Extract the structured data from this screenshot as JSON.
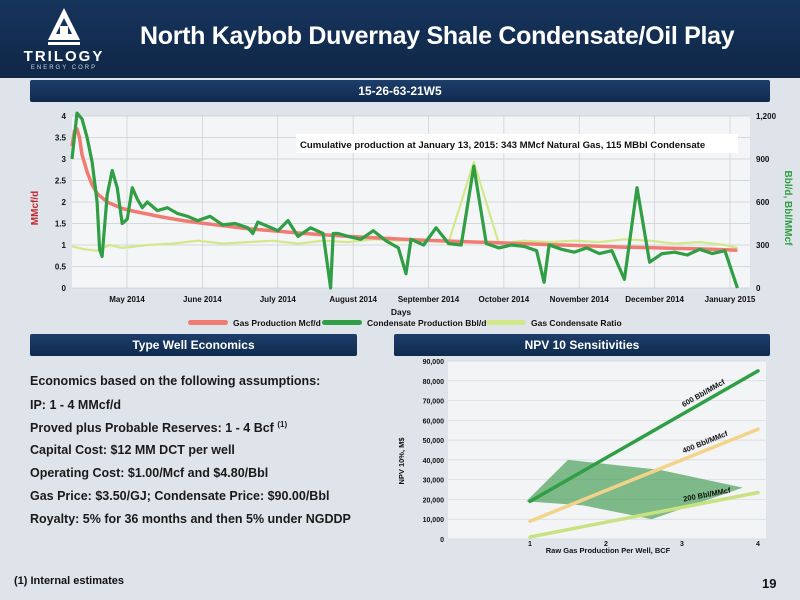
{
  "header": {
    "title": "North Kaybob Duvernay Shale Condensate/Oil Play",
    "logo_word": "TRILOGY",
    "logo_sub": "ENERGY CORP"
  },
  "well_bar": "15-26-63-21W5",
  "type_well_bar": "Type Well Economics",
  "npv_bar": "NPV 10 Sensitivities",
  "economics": {
    "intro": "Economics based on the following assumptions:",
    "items": [
      "IP: 1 - 4 MMcf/d",
      "Proved plus Probable Reserves: 1 - 4 Bcf",
      "Capital Cost: $12 MM DCT per well",
      "Operating Cost: $1.00/Mcf and $4.80/Bbl",
      "Gas Price: $3.50/GJ; Condensate Price: $90.00/Bbl",
      "Royalty: 5% for 36 months and then 5% under NGDDP"
    ],
    "reserves_note": "(1)"
  },
  "footnote": "(1) Internal estimates",
  "page_number": "19",
  "chart_data": [
    {
      "type": "line",
      "annotation": "Cumulative production at January 13, 2015: 343 MMcf Natural Gas, 115 MBbl Condensate",
      "xlabel": "Days",
      "ylabel_left": "MMcf/d",
      "ylabel_right": "Bbl/d, Bbl/MMcf",
      "x_ticks": [
        "May 2014",
        "June 2014",
        "July 2014",
        "August 2014",
        "September 2014",
        "October 2014",
        "November 2014",
        "December 2014",
        "January 2015"
      ],
      "y_left_ticks": [
        "0",
        "0.5",
        "1",
        "1.5",
        "2",
        "2.5",
        "3",
        "3.5",
        "4"
      ],
      "y_right_ticks": [
        "0",
        "300",
        "600",
        "900",
        "1,200"
      ],
      "ylim_left": [
        0,
        4
      ],
      "ylim_right": [
        0,
        1200
      ],
      "x_range_days": [
        0,
        270
      ],
      "colors": {
        "gas": "#f07b72",
        "condensate": "#2f9e44",
        "ratio": "#d2e88a",
        "ylabel_left": "#c0262c",
        "ylabel_right": "#2f9e44"
      },
      "series": [
        {
          "name": "Gas Production Mcf/d",
          "axis": "left",
          "x": [
            0,
            1,
            2,
            3,
            4,
            5,
            6,
            8,
            10,
            12,
            14,
            16,
            18,
            20,
            25,
            30,
            35,
            40,
            45,
            50,
            60,
            70,
            80,
            90,
            100,
            110,
            120,
            130,
            140,
            150,
            160,
            170,
            180,
            190,
            200,
            210,
            220,
            230,
            240,
            250,
            260,
            265
          ],
          "y": [
            3.3,
            3.65,
            3.7,
            3.5,
            3.1,
            2.9,
            2.7,
            2.4,
            2.2,
            2.1,
            2.0,
            1.95,
            1.9,
            1.85,
            1.78,
            1.72,
            1.66,
            1.61,
            1.56,
            1.52,
            1.45,
            1.38,
            1.33,
            1.28,
            1.24,
            1.2,
            1.17,
            1.14,
            1.11,
            1.09,
            1.07,
            1.05,
            1.03,
            1.01,
            0.99,
            0.97,
            0.95,
            0.94,
            0.92,
            0.91,
            0.89,
            0.88
          ]
        },
        {
          "name": "Condensate Production Bbl/d",
          "axis": "right",
          "x": [
            0,
            2,
            4,
            6,
            8,
            10,
            11,
            12,
            14,
            16,
            18,
            20,
            22,
            24,
            26,
            28,
            30,
            34,
            38,
            42,
            46,
            50,
            55,
            60,
            65,
            70,
            72,
            74,
            78,
            82,
            86,
            90,
            95,
            100,
            103,
            104,
            106,
            110,
            115,
            120,
            125,
            130,
            133,
            135,
            140,
            145,
            150,
            155,
            160,
            165,
            170,
            175,
            180,
            185,
            188,
            190,
            195,
            200,
            205,
            210,
            215,
            220,
            225,
            230,
            235,
            240,
            245,
            250,
            255,
            260,
            265
          ],
          "y": [
            900,
            1220,
            1180,
            1050,
            880,
            600,
            270,
            220,
            650,
            820,
            700,
            450,
            480,
            700,
            620,
            560,
            600,
            540,
            560,
            520,
            500,
            470,
            500,
            440,
            450,
            420,
            380,
            460,
            430,
            400,
            470,
            360,
            420,
            380,
            0,
            380,
            380,
            360,
            340,
            400,
            330,
            280,
            100,
            340,
            300,
            420,
            310,
            300,
            850,
            310,
            280,
            300,
            290,
            260,
            40,
            300,
            270,
            250,
            280,
            240,
            260,
            60,
            700,
            180,
            240,
            250,
            230,
            270,
            240,
            260,
            0
          ]
        },
        {
          "name": "Gas Condensate Ratio",
          "axis": "right",
          "x": [
            0,
            5,
            10,
            15,
            20,
            30,
            40,
            50,
            60,
            70,
            80,
            90,
            100,
            110,
            120,
            130,
            140,
            150,
            160,
            170,
            180,
            190,
            200,
            210,
            220,
            230,
            240,
            250,
            260,
            265
          ],
          "y": [
            290,
            270,
            260,
            300,
            280,
            300,
            310,
            330,
            310,
            320,
            330,
            310,
            330,
            320,
            340,
            330,
            340,
            320,
            880,
            310,
            330,
            320,
            330,
            320,
            340,
            330,
            310,
            320,
            300,
            280
          ]
        }
      ]
    },
    {
      "type": "line",
      "xlabel": "Raw Gas Production Per Well, BCF",
      "ylabel": "NPV 10%, M$",
      "x": [
        1,
        2,
        3,
        4
      ],
      "xlim": [
        1,
        4
      ],
      "ylim": [
        0,
        90000
      ],
      "y_ticks": [
        "0",
        "10,000",
        "20,000",
        "30,000",
        "40,000",
        "50,000",
        "60,000",
        "70,000",
        "80,000",
        "90,000"
      ],
      "x_ticks": [
        "1",
        "2",
        "3",
        "4"
      ],
      "colors": {
        "s600": "#2f9e44",
        "s400": "#f3d38a",
        "s200": "#c8e282",
        "band": "#3f9a4e"
      },
      "series": [
        {
          "name": "600 Bbl/MMcf",
          "values": [
            19000,
            41000,
            63000,
            85000
          ]
        },
        {
          "name": "400 Bbl/MMcf",
          "values": [
            9000,
            24500,
            40000,
            55500
          ]
        },
        {
          "name": "200 Bbl/MMcf",
          "values": [
            1000,
            8500,
            16000,
            23500
          ]
        }
      ],
      "band": {
        "x": [
          0.95,
          1.5,
          2.7,
          3.8,
          3.2,
          2.6,
          1.7
        ],
        "y": [
          19000,
          40000,
          35000,
          26000,
          18000,
          10000,
          17000
        ]
      }
    }
  ]
}
